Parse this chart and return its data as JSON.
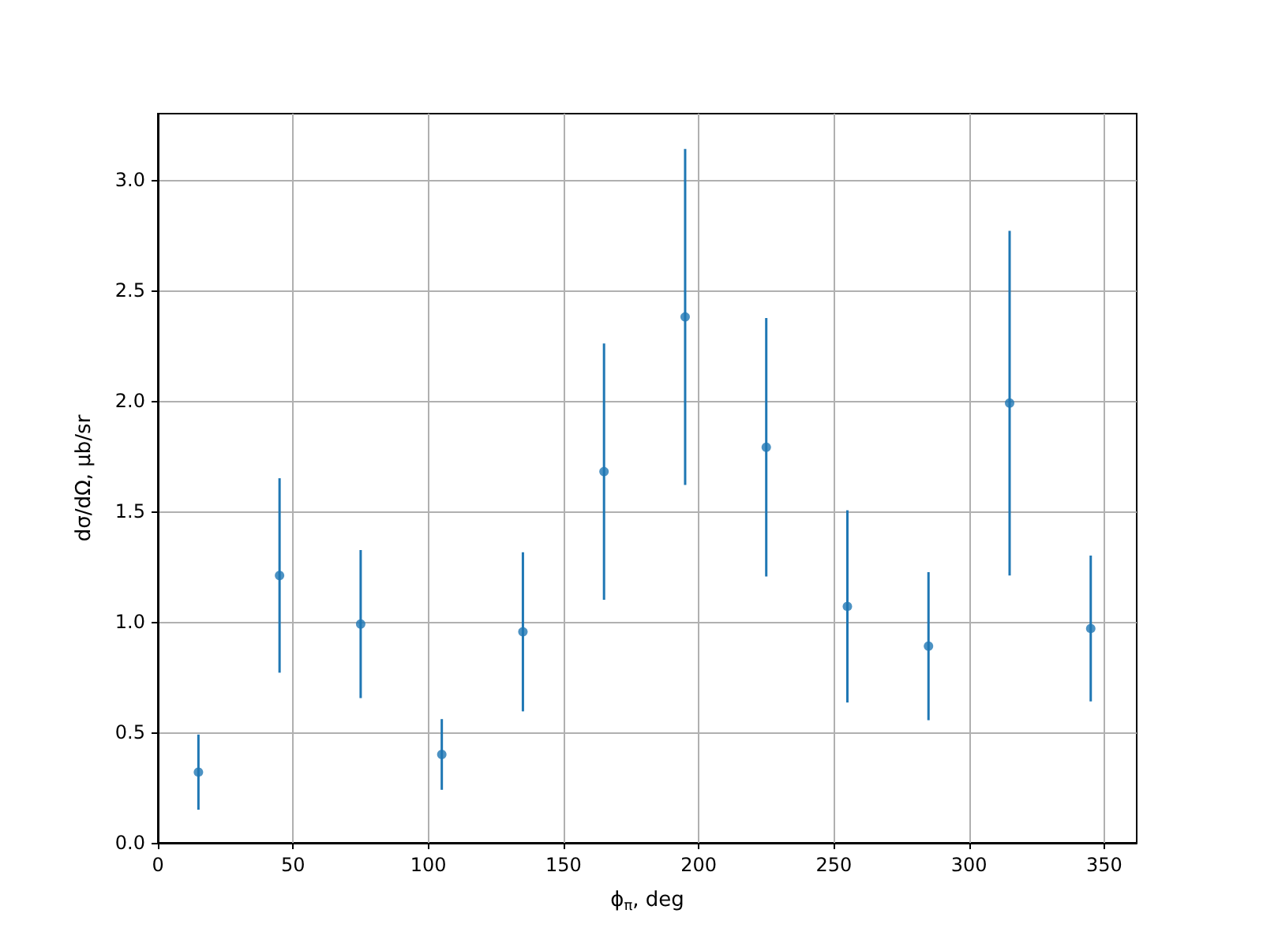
{
  "chart_data": {
    "type": "scatter",
    "xlabel": "ϕ$_{π}$, deg",
    "ylabel": "dσ/dΩ, μb/sr",
    "x": [
      15,
      45,
      75,
      105,
      135,
      165,
      195,
      225,
      255,
      285,
      315,
      345
    ],
    "values": [
      0.32,
      1.21,
      0.99,
      0.4,
      0.955,
      1.68,
      2.38,
      1.79,
      1.07,
      0.89,
      1.99,
      0.97
    ],
    "errors": [
      0.17,
      0.44,
      0.335,
      0.16,
      0.36,
      0.58,
      0.76,
      0.585,
      0.435,
      0.335,
      0.78,
      0.33
    ],
    "color": "#1f77b4",
    "marker": "circle",
    "xlim": [
      0,
      362
    ],
    "xticks": [
      0,
      50,
      100,
      150,
      200,
      250,
      300,
      350
    ],
    "ylim": [
      0,
      3.3
    ],
    "yticks": [
      {
        "value": 0,
        "label": "0.0"
      },
      {
        "value": 0.5,
        "label": "0.5"
      },
      {
        "value": 1,
        "label": "1.0"
      },
      {
        "value": 1.5,
        "label": "1.5"
      },
      {
        "value": 2,
        "label": "2.0"
      },
      {
        "value": 2.5,
        "label": "2.5"
      },
      {
        "value": 3,
        "label": "3.0"
      }
    ],
    "grid": true
  }
}
